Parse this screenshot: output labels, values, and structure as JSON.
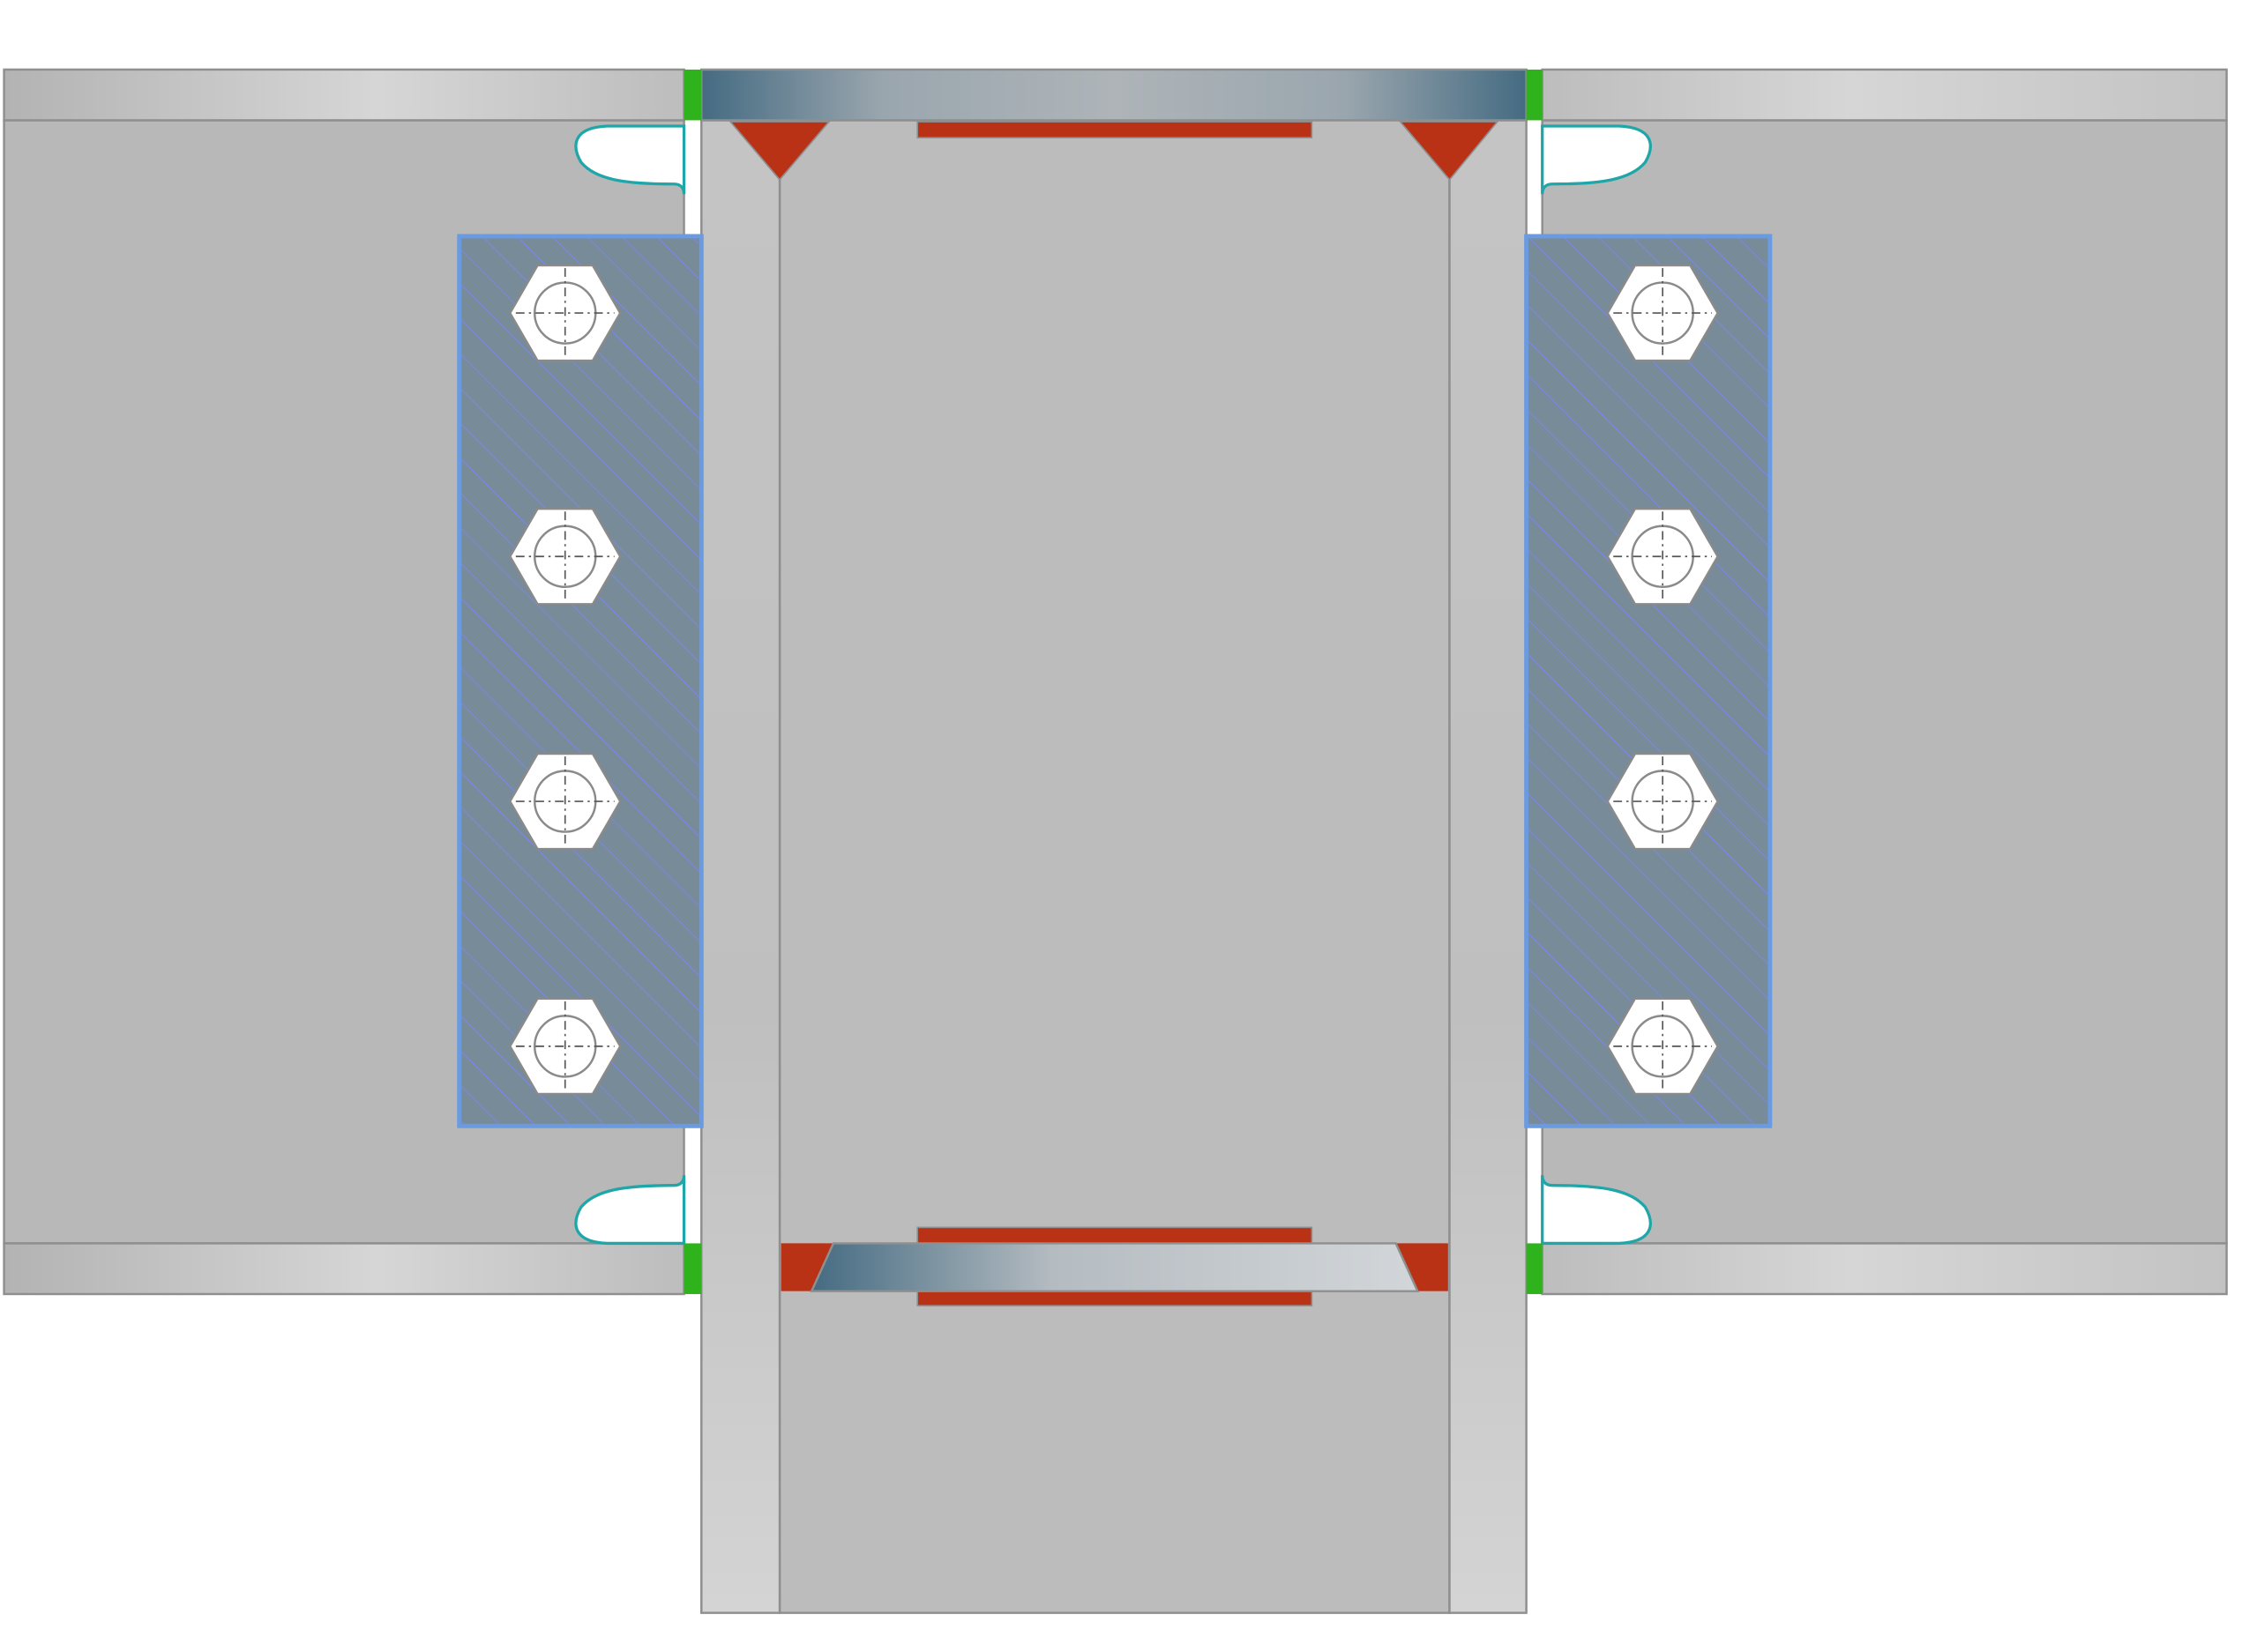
{
  "diagram": {
    "kind": "beam-to-column bolted connection detail (elevation)",
    "bolts_per_plate": 4,
    "bolt_groups": [
      "left",
      "right"
    ],
    "colors": {
      "beam_body": "#b8b8b8",
      "beam_flange": "#c6c6c6",
      "column_flange": "#c9c9c9",
      "column_web": "#bcbcbc",
      "weld": "#b93216",
      "cap_plate_dark": "#456b82",
      "cap_plate_light": "#cfd4d8",
      "end_plate_fill": "#788b98",
      "end_plate_border": "#6a9ae0",
      "end_plate_hatch": "#7a86e8",
      "packing_green": "#2fb31d",
      "cope_outline": "#1fa6a8",
      "bolt_fill": "#ffffff",
      "bolt_line": "#8a8a8a",
      "edge_line": "#8f8f8f"
    },
    "icons": [
      "hex-bolt-icon",
      "fillet-weld-icon"
    ]
  }
}
